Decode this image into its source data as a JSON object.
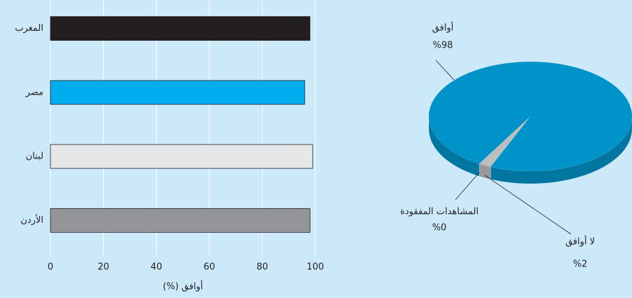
{
  "chart_data": [
    {
      "type": "bar",
      "orientation": "horizontal",
      "x_label": "أوافق (%)",
      "categories": [
        "المغرب",
        "مصر",
        "لبنان",
        "الأردن"
      ],
      "values": [
        98,
        96,
        99,
        98
      ],
      "colors": [
        "#231f20",
        "#00aeef",
        "#e6e7e8",
        "#939598"
      ],
      "xlim": [
        0,
        100
      ],
      "xticks": [
        0,
        20,
        40,
        60,
        80,
        100
      ],
      "grid": true
    },
    {
      "type": "pie",
      "categories": [
        "أوافق",
        "لا أوافق",
        "المشاهدات المفقودة"
      ],
      "values": [
        98,
        2,
        0
      ],
      "value_labels": [
        "%98",
        "%2",
        "%0"
      ],
      "colors": [
        "#0093c9",
        "#bcbec0",
        "#808285"
      ]
    }
  ]
}
